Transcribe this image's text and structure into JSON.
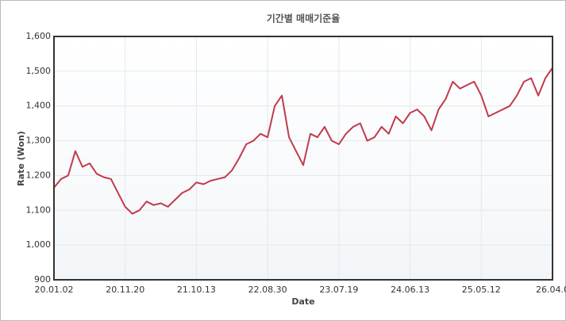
{
  "chart_data": {
    "type": "line",
    "title": "기간별 매매기준율",
    "x_label": "Date",
    "y_label": "Rate (Won)",
    "categories": [
      "20.01.02",
      null,
      null,
      null,
      null,
      null,
      null,
      null,
      null,
      null,
      "20.11.20",
      null,
      null,
      null,
      null,
      null,
      null,
      null,
      null,
      null,
      "21.10.13",
      null,
      null,
      null,
      null,
      null,
      null,
      null,
      null,
      null,
      "22.08.30",
      null,
      null,
      null,
      null,
      null,
      null,
      null,
      null,
      null,
      "23.07.19",
      null,
      null,
      null,
      null,
      null,
      null,
      null,
      null,
      null,
      "24.06.13",
      null,
      null,
      null,
      null,
      null,
      null,
      null,
      null,
      null,
      "25.05.12",
      null,
      null,
      null,
      null,
      null,
      null,
      null,
      null,
      null,
      "26.04.0"
    ],
    "series": [
      {
        "color": "#c23a4c",
        "values": [
          1165,
          1190,
          1200,
          1270,
          1225,
          1235,
          1205,
          1195,
          1190,
          1150,
          1110,
          1090,
          1100,
          1125,
          1115,
          1120,
          1110,
          1130,
          1150,
          1160,
          1180,
          1175,
          1185,
          1190,
          1195,
          1215,
          1250,
          1290,
          1300,
          1320,
          1310,
          1400,
          1430,
          1310,
          1270,
          1230,
          1320,
          1310,
          1340,
          1300,
          1290,
          1320,
          1340,
          1350,
          1300,
          1310,
          1340,
          1320,
          1370,
          1350,
          1380,
          1390,
          1370,
          1330,
          1390,
          1420,
          1470,
          1450,
          1460,
          1470,
          1430,
          1370,
          1380,
          1390,
          1400,
          1430,
          1470,
          1480,
          1430,
          1480,
          1510
        ]
      }
    ],
    "ylim": [
      900,
      1600
    ],
    "yticks": [
      {
        "value": 900,
        "label": "900"
      },
      {
        "value": 1000,
        "label": "1,000"
      },
      {
        "value": 1100,
        "label": "1,100"
      },
      {
        "value": 1200,
        "label": "1,200"
      },
      {
        "value": 1300,
        "label": "1,300"
      },
      {
        "value": 1400,
        "label": "1,400"
      },
      {
        "value": 1500,
        "label": "1,500"
      },
      {
        "value": 1600,
        "label": "1,600"
      }
    ],
    "grid": true
  }
}
